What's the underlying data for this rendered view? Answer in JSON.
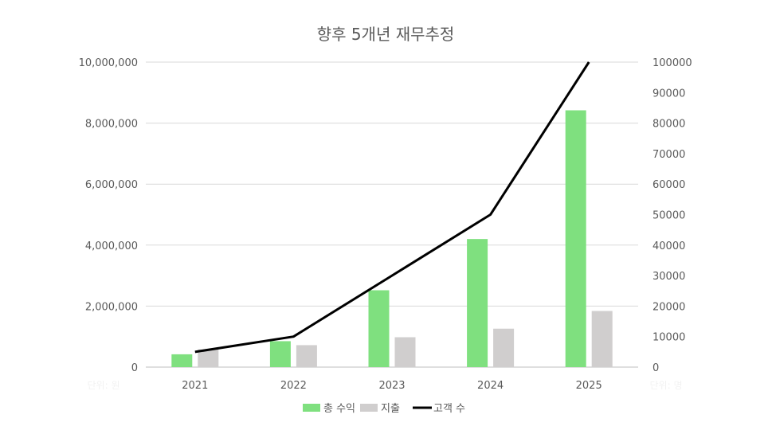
{
  "chart_data": {
    "type": "bar",
    "title": "향후 5개년 재무추정",
    "categories": [
      "2021",
      "2022",
      "2023",
      "2024",
      "2025"
    ],
    "series": [
      {
        "name": "총 수익",
        "type": "bar",
        "axis": "left",
        "color": "#7fe07f",
        "values": [
          420000,
          850000,
          2520000,
          4200000,
          8420000
        ]
      },
      {
        "name": "지출",
        "type": "bar",
        "axis": "left",
        "color": "#d0cece",
        "values": [
          580000,
          720000,
          980000,
          1260000,
          1840000
        ]
      },
      {
        "name": "고객 수",
        "type": "line",
        "axis": "right",
        "color": "#000000",
        "values": [
          5000,
          10000,
          30000,
          50000,
          100000
        ]
      }
    ],
    "left_axis": {
      "min": 0,
      "max": 10000000,
      "step": 2000000,
      "tick_labels": [
        "0",
        "2,000,000",
        "4,000,000",
        "6,000,000",
        "8,000,000",
        "10,000,000"
      ],
      "unit_label": "단위: 원"
    },
    "right_axis": {
      "min": 0,
      "max": 100000,
      "step": 10000,
      "tick_labels": [
        "0",
        "10000",
        "20000",
        "30000",
        "40000",
        "50000",
        "60000",
        "70000",
        "80000",
        "90000",
        "100000"
      ],
      "unit_label": "단위: 명"
    },
    "grid": true,
    "legend_position": "bottom"
  }
}
